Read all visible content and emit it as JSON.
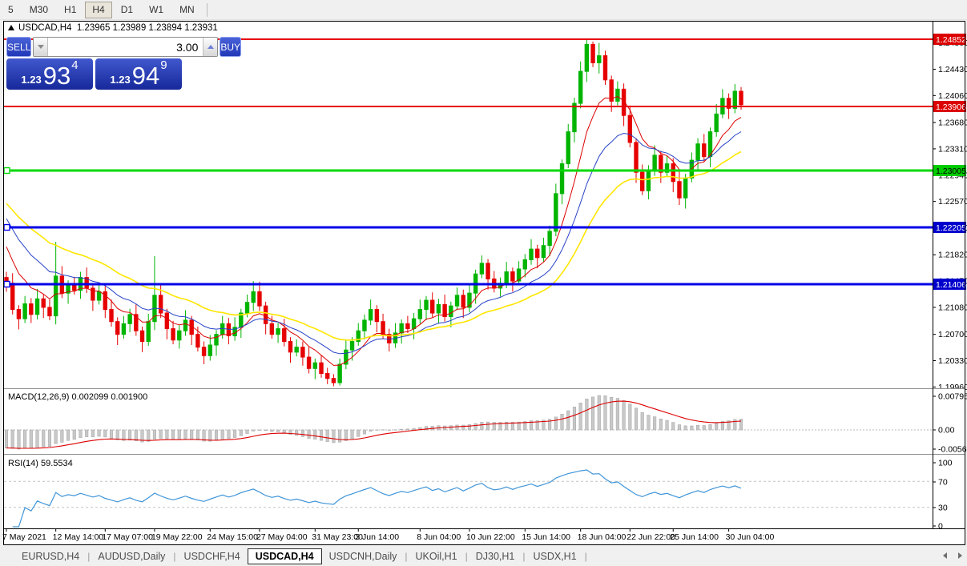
{
  "colors": {
    "bull": "#00b400",
    "bear": "#e60000",
    "chart_bg": "#ffffff",
    "frame": "#000000",
    "toolbar_bg": "#f0f0f0"
  },
  "toolbar": {
    "buttons": [
      "5",
      "M30",
      "H1",
      "H4",
      "D1",
      "W1",
      "MN"
    ],
    "active": "H4"
  },
  "window_title": {
    "symbol": "USDCAD,H4",
    "open": "1.23965",
    "high": "1.23989",
    "low": "1.23894",
    "close": "1.23931"
  },
  "trade_panel": {
    "sell_label": "SELL",
    "buy_label": "BUY",
    "volume": "3.00",
    "sell_price_base": "1.23",
    "sell_price_main": "93",
    "sell_price_pip": "4",
    "buy_price_base": "1.23",
    "buy_price_main": "94",
    "buy_price_pip": "9"
  },
  "macd_panel": {
    "title": "MACD(12,26,9) 0.002099 0.001900",
    "scale_labels": [
      "0.007959",
      "0.00",
      "-0.00566"
    ]
  },
  "rsi_panel": {
    "title": "RSI(14) 59.5534",
    "scale_labels": [
      "100",
      "70",
      "30",
      "0"
    ]
  },
  "price_axis": {
    "ticks": [
      "1.24800",
      "1.24430",
      "1.24060",
      "1.23680",
      "1.23310",
      "1.22940",
      "1.22570",
      "1.22200",
      "1.21820",
      "1.21450",
      "1.21080",
      "1.20700",
      "1.20330",
      "1.19960"
    ]
  },
  "date_axis": {
    "labels": [
      {
        "label": "7 May 2021",
        "i": 0
      },
      {
        "label": "12 May 14:00",
        "i": 8
      },
      {
        "label": "17 May 07:00",
        "i": 16
      },
      {
        "label": "19 May 22:00",
        "i": 24
      },
      {
        "label": "24 May 15:00",
        "i": 33
      },
      {
        "label": "27 May 04:00",
        "i": 41
      },
      {
        "label": "31 May 23:00",
        "i": 50
      },
      {
        "label": "3 Jun 14:00",
        "i": 57
      },
      {
        "label": "8 Jun 04:00",
        "i": 67
      },
      {
        "label": "10 Jun 22:00",
        "i": 75
      },
      {
        "label": "15 Jun 14:00",
        "i": 84
      },
      {
        "label": "18 Jun 04:00",
        "i": 93
      },
      {
        "label": "22 Jun 22:00",
        "i": 101
      },
      {
        "label": "25 Jun 14:00",
        "i": 108
      },
      {
        "label": "30 Jun 04:00",
        "i": 117
      }
    ]
  },
  "tabs": {
    "items": [
      "EURUSD,H4",
      "AUDUSD,Daily",
      "USDCHF,H4",
      "USDCAD,H4",
      "USDCNH,Daily",
      "UKOil,H1",
      "DJ30,H1",
      "USDX,H1"
    ],
    "active_index": 3
  },
  "chart_data": {
    "type": "candlestick",
    "symbol": "USDCAD",
    "timeframe": "H4",
    "hlines": [
      {
        "price": 1.24852,
        "label": "1.24852",
        "color": "#e80000",
        "width": 2,
        "badge_bg": "#dd0000",
        "badge_fg": "#ffffff",
        "anchor": false
      },
      {
        "price": 1.23906,
        "label": "1.23906",
        "color": "#e80000",
        "width": 2,
        "badge_bg": "#dd0000",
        "badge_fg": "#ffffff",
        "anchor": false
      },
      {
        "price": 1.23005,
        "label": "1.23005",
        "color": "#00d800",
        "width": 3,
        "badge_bg": "#00cc00",
        "badge_fg": "#000000",
        "anchor": true
      },
      {
        "price": 1.22205,
        "label": "1.22205",
        "color": "#0000e8",
        "width": 3,
        "badge_bg": "#0000cc",
        "badge_fg": "#ffffff",
        "anchor": true
      },
      {
        "price": 1.21406,
        "label": "1.21406",
        "color": "#0000e8",
        "width": 3,
        "badge_bg": "#0000cc",
        "badge_fg": "#ffffff",
        "anchor": true
      }
    ],
    "ma": [
      {
        "name": "ma-fast",
        "period": 8,
        "init": 1.2208,
        "color": "#dd0000",
        "width": 1
      },
      {
        "name": "ma-medium",
        "period": 16,
        "init": 1.2245,
        "color": "#2742c8",
        "width": 1
      },
      {
        "name": "ma-slow",
        "period": 30,
        "init": 1.2262,
        "color": "#ffe600",
        "width": 1.6
      }
    ],
    "macd": {
      "fast": 12,
      "slow": 26,
      "signal": 9,
      "init_fast": 1.2142,
      "init_slow": 1.2175,
      "hist_fill": "#c8c8c8",
      "hist_stroke": "#a4a4a4",
      "signal_color": "#dd0000",
      "current_main": "0.002099",
      "current_signal": "0.001900"
    },
    "rsi": {
      "period": 14,
      "color": "#4095d8",
      "levels": [
        70,
        30
      ],
      "current": "59.5534"
    },
    "candles": [
      [
        1.215,
        1.2158,
        1.213,
        1.2142
      ],
      [
        1.2142,
        1.2156,
        1.2098,
        1.2105
      ],
      [
        1.2105,
        1.2111,
        1.2077,
        1.2092
      ],
      [
        1.2092,
        1.2124,
        1.2086,
        1.2113
      ],
      [
        1.2113,
        1.2121,
        1.2086,
        1.2098
      ],
      [
        1.2098,
        1.2134,
        1.2091,
        1.212
      ],
      [
        1.212,
        1.2126,
        1.2093,
        1.2108
      ],
      [
        1.2108,
        1.2119,
        1.209,
        1.2096
      ],
      [
        1.2096,
        1.22,
        1.2084,
        1.2152
      ],
      [
        1.2152,
        1.2166,
        1.2121,
        1.2128
      ],
      [
        1.2128,
        1.2146,
        1.2113,
        1.214
      ],
      [
        1.214,
        1.2151,
        1.2126,
        1.2132
      ],
      [
        1.2132,
        1.2158,
        1.212,
        1.215
      ],
      [
        1.215,
        1.2164,
        1.2128,
        1.2135
      ],
      [
        1.2135,
        1.2141,
        1.2103,
        1.2118
      ],
      [
        1.2118,
        1.2141,
        1.2112,
        1.213
      ],
      [
        1.213,
        1.2138,
        1.2093,
        1.2105
      ],
      [
        1.2105,
        1.2119,
        1.2081,
        1.2088
      ],
      [
        1.2088,
        1.2094,
        1.2055,
        1.207
      ],
      [
        1.207,
        1.2096,
        1.2064,
        1.2085
      ],
      [
        1.2085,
        1.2106,
        1.2073,
        1.2098
      ],
      [
        1.2098,
        1.2112,
        1.2068,
        1.2075
      ],
      [
        1.2075,
        1.2081,
        1.2045,
        1.206
      ],
      [
        1.206,
        1.2099,
        1.2054,
        1.2088
      ],
      [
        1.2088,
        1.218,
        1.2076,
        1.2125
      ],
      [
        1.2125,
        1.2139,
        1.2093,
        1.21
      ],
      [
        1.21,
        1.2106,
        1.2063,
        1.2078
      ],
      [
        1.2078,
        1.2089,
        1.2056,
        1.2062
      ],
      [
        1.2062,
        1.2083,
        1.205,
        1.2075
      ],
      [
        1.2075,
        1.2104,
        1.2068,
        1.209
      ],
      [
        1.209,
        1.2096,
        1.2055,
        1.207
      ],
      [
        1.207,
        1.2081,
        1.2046,
        1.2052
      ],
      [
        1.2052,
        1.206,
        1.2028,
        1.204
      ],
      [
        1.204,
        1.2069,
        1.2033,
        1.2055
      ],
      [
        1.2055,
        1.2076,
        1.204,
        1.207
      ],
      [
        1.207,
        1.2096,
        1.2064,
        1.2085
      ],
      [
        1.2085,
        1.2093,
        1.2056,
        1.2068
      ],
      [
        1.2068,
        1.2094,
        1.2061,
        1.208
      ],
      [
        1.208,
        1.2106,
        1.2065,
        1.21
      ],
      [
        1.21,
        1.2126,
        1.2094,
        1.2115
      ],
      [
        1.2115,
        1.2145,
        1.2103,
        1.213
      ],
      [
        1.213,
        1.2144,
        1.2103,
        1.211
      ],
      [
        1.211,
        1.2116,
        1.207,
        1.2085
      ],
      [
        1.2085,
        1.2096,
        1.2064,
        1.207
      ],
      [
        1.207,
        1.2086,
        1.2058,
        1.2078
      ],
      [
        1.2078,
        1.2092,
        1.2053,
        1.206
      ],
      [
        1.206,
        1.2066,
        1.203,
        1.2045
      ],
      [
        1.2045,
        1.2063,
        1.2039,
        1.2052
      ],
      [
        1.2052,
        1.206,
        1.2026,
        1.2038
      ],
      [
        1.2038,
        1.2052,
        1.2015,
        1.2022
      ],
      [
        1.2022,
        1.2036,
        1.2007,
        1.203
      ],
      [
        1.203,
        1.2041,
        1.2009,
        1.2015
      ],
      [
        1.2015,
        1.2023,
        1.2,
        1.2008
      ],
      [
        1.2008,
        1.2014,
        1.1997,
        1.2002
      ],
      [
        1.2002,
        1.2036,
        1.1998,
        1.2028
      ],
      [
        1.2028,
        1.2062,
        1.2021,
        1.2048
      ],
      [
        1.2048,
        1.2066,
        1.2033,
        1.206
      ],
      [
        1.206,
        1.2086,
        1.2054,
        1.2075
      ],
      [
        1.2075,
        1.2098,
        1.2063,
        1.209
      ],
      [
        1.209,
        1.2119,
        1.2083,
        1.2105
      ],
      [
        1.2105,
        1.2111,
        1.2073,
        1.2088
      ],
      [
        1.2088,
        1.2099,
        1.2064,
        1.207
      ],
      [
        1.207,
        1.2078,
        1.2046,
        1.2058
      ],
      [
        1.2058,
        1.2086,
        1.2051,
        1.2072
      ],
      [
        1.2072,
        1.2091,
        1.2057,
        1.2085
      ],
      [
        1.2085,
        1.2096,
        1.2072,
        1.2078
      ],
      [
        1.2078,
        1.21,
        1.2063,
        1.2092
      ],
      [
        1.2092,
        1.2119,
        1.2085,
        1.2105
      ],
      [
        1.2105,
        1.2124,
        1.209,
        1.2118
      ],
      [
        1.2118,
        1.2129,
        1.2094,
        1.21
      ],
      [
        1.21,
        1.212,
        1.2085,
        1.2112
      ],
      [
        1.2112,
        1.2126,
        1.2088,
        1.2095
      ],
      [
        1.2095,
        1.2116,
        1.208,
        1.211
      ],
      [
        1.211,
        1.2136,
        1.2104,
        1.2125
      ],
      [
        1.2125,
        1.2133,
        1.2093,
        1.2108
      ],
      [
        1.2108,
        1.2142,
        1.2101,
        1.2128
      ],
      [
        1.2128,
        1.2161,
        1.2113,
        1.2155
      ],
      [
        1.2155,
        1.2181,
        1.2149,
        1.217
      ],
      [
        1.217,
        1.2176,
        1.2133,
        1.2148
      ],
      [
        1.2148,
        1.2159,
        1.2129,
        1.2135
      ],
      [
        1.2135,
        1.215,
        1.2123,
        1.2142
      ],
      [
        1.2142,
        1.2172,
        1.2135,
        1.2158
      ],
      [
        1.2158,
        1.2164,
        1.213,
        1.2145
      ],
      [
        1.2145,
        1.2173,
        1.2139,
        1.2162
      ],
      [
        1.2162,
        1.2183,
        1.215,
        1.2175
      ],
      [
        1.2175,
        1.2204,
        1.2168,
        1.219
      ],
      [
        1.219,
        1.2196,
        1.2163,
        1.2178
      ],
      [
        1.2178,
        1.2206,
        1.2172,
        1.2195
      ],
      [
        1.2195,
        1.2223,
        1.218,
        1.2215
      ],
      [
        1.2215,
        1.2282,
        1.2208,
        1.2268
      ],
      [
        1.2268,
        1.2316,
        1.2253,
        1.231
      ],
      [
        1.231,
        1.2366,
        1.2304,
        1.2355
      ],
      [
        1.2355,
        1.2403,
        1.234,
        1.2395
      ],
      [
        1.2395,
        1.2454,
        1.2388,
        1.244
      ],
      [
        1.244,
        1.2485,
        1.2425,
        1.2478
      ],
      [
        1.2478,
        1.2482,
        1.2446,
        1.2452
      ],
      [
        1.2452,
        1.248,
        1.2437,
        1.2462
      ],
      [
        1.2462,
        1.2469,
        1.2421,
        1.2428
      ],
      [
        1.2428,
        1.2434,
        1.2383,
        1.2398
      ],
      [
        1.2398,
        1.2426,
        1.2392,
        1.2415
      ],
      [
        1.2415,
        1.2423,
        1.2363,
        1.2378
      ],
      [
        1.2378,
        1.2392,
        1.2333,
        1.234
      ],
      [
        1.234,
        1.2346,
        1.2283,
        1.2298
      ],
      [
        1.2298,
        1.2309,
        1.2266,
        1.2272
      ],
      [
        1.2272,
        1.2308,
        1.226,
        1.23
      ],
      [
        1.23,
        1.2336,
        1.2293,
        1.2322
      ],
      [
        1.2322,
        1.2328,
        1.2283,
        1.2298
      ],
      [
        1.2298,
        1.2321,
        1.2292,
        1.231
      ],
      [
        1.231,
        1.2318,
        1.227,
        1.2285
      ],
      [
        1.2285,
        1.2299,
        1.2252,
        1.2262
      ],
      [
        1.2262,
        1.2296,
        1.2247,
        1.229
      ],
      [
        1.229,
        1.2326,
        1.2284,
        1.2315
      ],
      [
        1.2315,
        1.2346,
        1.23,
        1.2338
      ],
      [
        1.2338,
        1.2352,
        1.2313,
        1.232
      ],
      [
        1.232,
        1.2361,
        1.2305,
        1.2355
      ],
      [
        1.2355,
        1.2394,
        1.2348,
        1.238
      ],
      [
        1.238,
        1.2415,
        1.2374,
        1.2402
      ],
      [
        1.2402,
        1.2409,
        1.2373,
        1.2388
      ],
      [
        1.2388,
        1.2422,
        1.2381,
        1.2412
      ],
      [
        1.2412,
        1.2418,
        1.2386,
        1.2393
      ]
    ]
  }
}
